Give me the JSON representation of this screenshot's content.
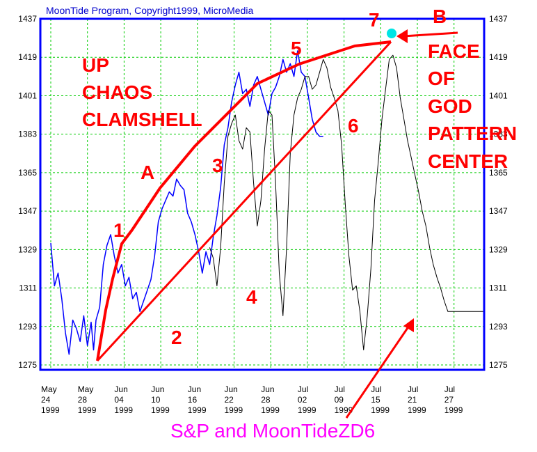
{
  "chart_data": {
    "type": "line",
    "title": "MoonTide Program, Copyright1999, MicroMedia",
    "footer": "S&P and MoonTideZD6",
    "ylim": [
      1275,
      1437
    ],
    "y_ticks": [
      1275,
      1293,
      1311,
      1329,
      1347,
      1365,
      1383,
      1401,
      1419,
      1437
    ],
    "x_ticks": [
      {
        "month": "May",
        "day": "24",
        "year": "1999"
      },
      {
        "month": "May",
        "day": "28",
        "year": "1999"
      },
      {
        "month": "Jun",
        "day": "04",
        "year": "1999"
      },
      {
        "month": "Jun",
        "day": "10",
        "year": "1999"
      },
      {
        "month": "Jun",
        "day": "16",
        "year": "1999"
      },
      {
        "month": "Jun",
        "day": "22",
        "year": "1999"
      },
      {
        "month": "Jun",
        "day": "28",
        "year": "1999"
      },
      {
        "month": "Jul",
        "day": "02",
        "year": "1999"
      },
      {
        "month": "Jul",
        "day": "09",
        "year": "1999"
      },
      {
        "month": "Jul",
        "day": "15",
        "year": "1999"
      },
      {
        "month": "Jul",
        "day": "21",
        "year": "1999"
      },
      {
        "month": "Jul",
        "day": "27",
        "year": "1999"
      }
    ],
    "grid": true,
    "series": [
      {
        "color": "#0000ff",
        "t": [
          0,
          0.3,
          0.6,
          0.9,
          1.2,
          1.5,
          1.8,
          2.1,
          2.4,
          2.7,
          3.0,
          3.3,
          3.5,
          3.7,
          4.0,
          4.3,
          4.6,
          4.9,
          5.2,
          5.5,
          5.8,
          6.1,
          6.4,
          6.7,
          7.0,
          7.3,
          7.6,
          7.9,
          8.2,
          8.5,
          8.8,
          9.1,
          9.4,
          9.7,
          10.0,
          10.3,
          10.6,
          10.9,
          11.2,
          11.5,
          11.8,
          12.1,
          12.4,
          12.7,
          13.0,
          13.3,
          13.6,
          13.9,
          14.2,
          14.5,
          14.8,
          15.1,
          15.4,
          15.7,
          16.0,
          16.3,
          16.6,
          16.9,
          17.2,
          17.5,
          17.8,
          18.1,
          18.4,
          18.7,
          19.0,
          19.3,
          19.6,
          19.9,
          20.2,
          20.5,
          20.8,
          21.1,
          21.4,
          21.7,
          22.0,
          22.3
        ],
        "values": [
          1332,
          1312,
          1318,
          1306,
          1290,
          1280,
          1296,
          1292,
          1286,
          1298,
          1284,
          1295,
          1282,
          1296,
          1302,
          1322,
          1331,
          1336,
          1326,
          1318,
          1322,
          1312,
          1316,
          1306,
          1309,
          1300,
          1305,
          1310,
          1315,
          1326,
          1342,
          1348,
          1352,
          1356,
          1354,
          1362,
          1359,
          1357,
          1346,
          1342,
          1336,
          1328,
          1318,
          1328,
          1322,
          1335,
          1345,
          1358,
          1378,
          1386,
          1398,
          1406,
          1412,
          1402,
          1404,
          1396,
          1406,
          1410,
          1404,
          1398,
          1392,
          1402,
          1405,
          1410,
          1418,
          1412,
          1416,
          1410,
          1422,
          1412,
          1410,
          1400,
          1390,
          1384,
          1382,
          1382
        ]
      },
      {
        "color": "#000000",
        "t": [
          13.0,
          13.3,
          13.6,
          13.9,
          14.2,
          14.5,
          14.8,
          15.1,
          15.4,
          15.7,
          16.0,
          16.3,
          16.6,
          16.9,
          17.2,
          17.5,
          17.8,
          18.1,
          18.4,
          18.7,
          19.0,
          19.3,
          19.6,
          19.9,
          20.2,
          20.5,
          20.8,
          21.1,
          21.4,
          21.7,
          22.0,
          22.3,
          22.6,
          22.9,
          23.2,
          23.5,
          23.8,
          24.1,
          24.4,
          24.7,
          25.0,
          25.3,
          25.6,
          25.9,
          26.2,
          26.5,
          26.8,
          27.1,
          27.4,
          27.7,
          28.0,
          28.3,
          28.6,
          28.9,
          29.2,
          29.5,
          29.8,
          30.1,
          30.4,
          30.7,
          31.0,
          31.3,
          31.6,
          31.9,
          32.2,
          32.5,
          32.8,
          33.1,
          33.4,
          33.7,
          34.0,
          34.3,
          34.6,
          34.9,
          35.2,
          35.5
        ],
        "values": [
          1330,
          1325,
          1312,
          1330,
          1360,
          1382,
          1388,
          1392,
          1380,
          1376,
          1386,
          1384,
          1360,
          1340,
          1352,
          1376,
          1394,
          1392,
          1360,
          1318,
          1298,
          1330,
          1374,
          1392,
          1400,
          1404,
          1410,
          1410,
          1404,
          1406,
          1412,
          1418,
          1414,
          1405,
          1400,
          1394,
          1378,
          1350,
          1326,
          1310,
          1312,
          1300,
          1282,
          1298,
          1320,
          1352,
          1370,
          1390,
          1404,
          1418,
          1420,
          1414,
          1400,
          1390,
          1380,
          1372,
          1364,
          1356,
          1347,
          1340,
          1330,
          1322,
          1316,
          1311,
          1305,
          1300,
          1300,
          1300,
          1300,
          1300,
          1300,
          1300,
          1300,
          1300,
          1300,
          1300
        ]
      }
    ],
    "annotations": {
      "title_lines": [
        "UP",
        "CHAOS",
        "CLAMSHELL"
      ],
      "right_lines": [
        "FACE",
        "OF",
        "GOD",
        "PATTERN",
        "CENTER"
      ],
      "labels": [
        "1",
        "2",
        "3",
        "4",
        "5",
        "6",
        "7",
        "A",
        "B"
      ]
    },
    "colors": {
      "axis": "#0000ff",
      "grid": "#00cc00",
      "annotation": "#ff0000",
      "marker": "#00e5e5",
      "footer": "#ff00ff"
    }
  }
}
